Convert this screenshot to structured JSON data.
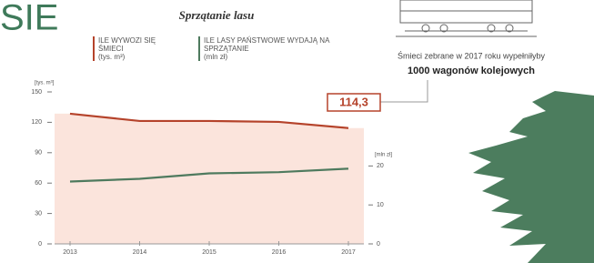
{
  "chart_data": {
    "type": "line",
    "page_title": "SIE",
    "title": "Sprzątanie lasu",
    "annotation": "Śmieci zebrane w 2017 roku wypełniłyby",
    "annotation_highlight": "1000 wagonów kolejowych",
    "ylabel": "[tys. m³]",
    "y2label": "[mln zł]",
    "categories": [
      "2013",
      "2014",
      "2015",
      "2016",
      "2017"
    ],
    "series": [
      {
        "name": "ILE WYWOZI SIĘ ŚMIECI",
        "unit": "(tys. m³)",
        "color": "#b5432b",
        "fill": "#fbe4dc",
        "values": [
          128.5,
          121.3,
          121.3,
          120.4,
          114.3
        ],
        "value_labels": [
          null,
          null,
          null,
          null,
          "114,3"
        ]
      },
      {
        "name": "ILE LASY PAŃSTWOWE WYDAJĄ NA SPRZĄTANIE",
        "unit": "(mln zł)",
        "color": "#4e7a5e",
        "axis": "y2",
        "values": [
          16.0,
          16.7,
          18.1,
          18.4,
          19.3
        ]
      }
    ],
    "ylim": [
      0,
      150
    ],
    "yticks": [
      0,
      30,
      60,
      90,
      120,
      150
    ],
    "y2lim": [
      0,
      39
    ],
    "y2ticks": [
      0,
      10,
      20
    ]
  }
}
